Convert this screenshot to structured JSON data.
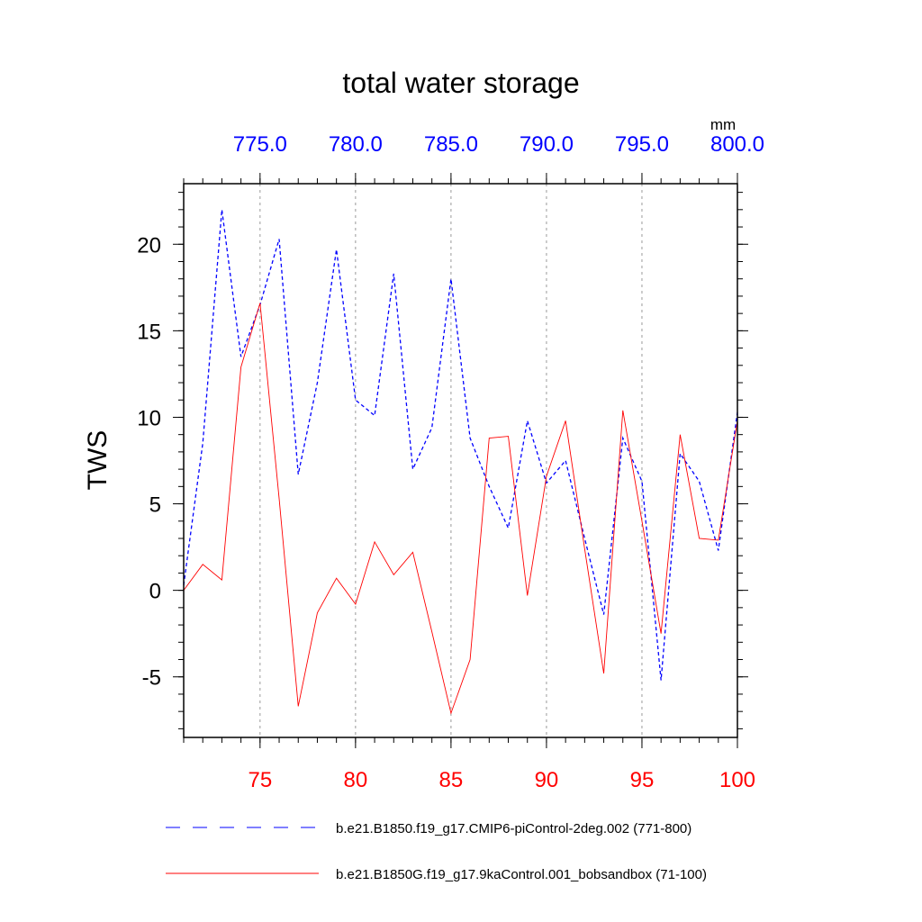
{
  "chart_data": {
    "type": "line",
    "title": "total water storage",
    "ylabel": "TWS",
    "ylim": [
      -8.5,
      23.5
    ],
    "yticks": [
      -5,
      0,
      5,
      10,
      15,
      20
    ],
    "ytick_labels": [
      "-5",
      "0",
      "5",
      "10",
      "15",
      "20"
    ],
    "y_minor_step": 1,
    "bottom_axis": {
      "range": [
        71,
        100
      ],
      "ticks": [
        75,
        80,
        85,
        90,
        95,
        100
      ],
      "tick_labels": [
        "75",
        "80",
        "85",
        "90",
        "95",
        "100"
      ],
      "color": "#ff0000"
    },
    "top_axis": {
      "range": [
        771,
        800
      ],
      "ticks": [
        775,
        780,
        785,
        790,
        795,
        800
      ],
      "tick_labels": [
        "775.0",
        "780.0",
        "785.0",
        "790.0",
        "795.0",
        "800.0"
      ],
      "units": "mm",
      "color": "#0000ff"
    },
    "vertical_gridlines_at": [
      75,
      80,
      85,
      90,
      95
    ],
    "series": [
      {
        "name": "b.e21.B1850.f19_g17.CMIP6-piControl-2deg.002 (771-800)",
        "axis": "top",
        "color": "#0000ff",
        "style": "dashed",
        "x": [
          771,
          772,
          773,
          774,
          775,
          776,
          777,
          778,
          779,
          780,
          781,
          782,
          783,
          784,
          785,
          786,
          787,
          788,
          789,
          790,
          791,
          792,
          793,
          794,
          795,
          796,
          797,
          798,
          799,
          800
        ],
        "values": [
          0.3,
          8.5,
          22.0,
          13.5,
          16.5,
          20.3,
          6.7,
          12.0,
          19.7,
          11.0,
          10.1,
          18.3,
          7.0,
          9.4,
          18.0,
          8.8,
          6.0,
          3.6,
          9.8,
          6.2,
          7.5,
          3.0,
          -1.4,
          8.8,
          6.3,
          -5.2,
          7.9,
          6.3,
          2.3,
          10.3
        ]
      },
      {
        "name": "b.e21.B1850G.f19_g17.9kaControl.001_bobsandbox (71-100)",
        "axis": "bottom",
        "color": "#ff0000",
        "style": "solid",
        "x": [
          71,
          72,
          73,
          74,
          75,
          76,
          77,
          78,
          79,
          80,
          81,
          82,
          83,
          84,
          85,
          86,
          87,
          88,
          89,
          90,
          91,
          92,
          93,
          94,
          95,
          96,
          97,
          98,
          99,
          100
        ],
        "values": [
          0.0,
          1.5,
          0.6,
          12.9,
          16.6,
          5.3,
          -6.7,
          -1.3,
          0.7,
          -0.8,
          2.8,
          0.9,
          2.2,
          -2.4,
          -7.1,
          -4.0,
          8.8,
          8.9,
          -0.3,
          6.6,
          9.8,
          2.4,
          -4.8,
          10.4,
          4.0,
          -2.5,
          9.0,
          3.0,
          2.9,
          9.8
        ]
      }
    ],
    "legend_placement": "bottom"
  }
}
